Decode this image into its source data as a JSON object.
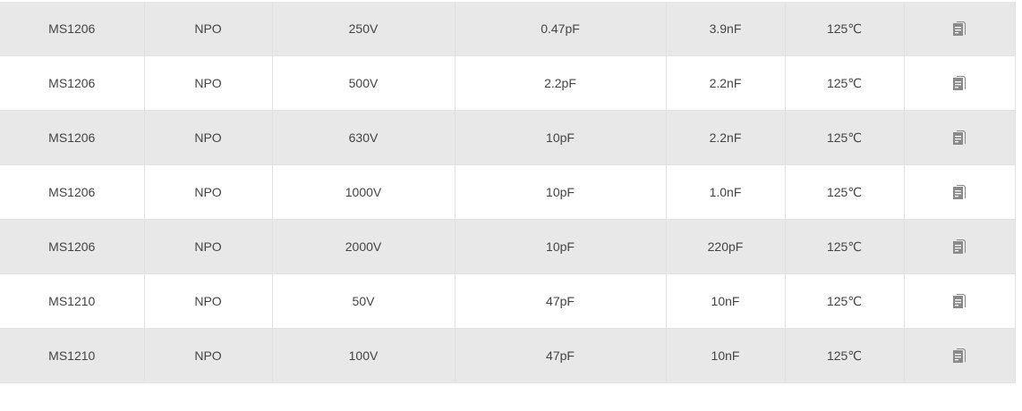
{
  "table": {
    "rows": [
      {
        "model": "MS1206",
        "dielectric": "NPO",
        "voltage": "250V",
        "cap_min": "0.47pF",
        "cap_max": "3.9nF",
        "temp": "125℃",
        "icon": "document-icon"
      },
      {
        "model": "MS1206",
        "dielectric": "NPO",
        "voltage": "500V",
        "cap_min": "2.2pF",
        "cap_max": "2.2nF",
        "temp": "125℃",
        "icon": "document-icon"
      },
      {
        "model": "MS1206",
        "dielectric": "NPO",
        "voltage": "630V",
        "cap_min": "10pF",
        "cap_max": "2.2nF",
        "temp": "125℃",
        "icon": "document-icon"
      },
      {
        "model": "MS1206",
        "dielectric": "NPO",
        "voltage": "1000V",
        "cap_min": "10pF",
        "cap_max": "1.0nF",
        "temp": "125℃",
        "icon": "document-icon"
      },
      {
        "model": "MS1206",
        "dielectric": "NPO",
        "voltage": "2000V",
        "cap_min": "10pF",
        "cap_max": "220pF",
        "temp": "125℃",
        "icon": "document-icon"
      },
      {
        "model": "MS1210",
        "dielectric": "NPO",
        "voltage": "50V",
        "cap_min": "47pF",
        "cap_max": "10nF",
        "temp": "125℃",
        "icon": "document-icon"
      },
      {
        "model": "MS1210",
        "dielectric": "NPO",
        "voltage": "100V",
        "cap_min": "47pF",
        "cap_max": "10nF",
        "temp": "125℃",
        "icon": "document-icon"
      }
    ]
  },
  "colors": {
    "odd_row": "#e8e8e8",
    "even_row": "#ffffff",
    "text": "#444444",
    "icon": "#8a8a8a"
  }
}
